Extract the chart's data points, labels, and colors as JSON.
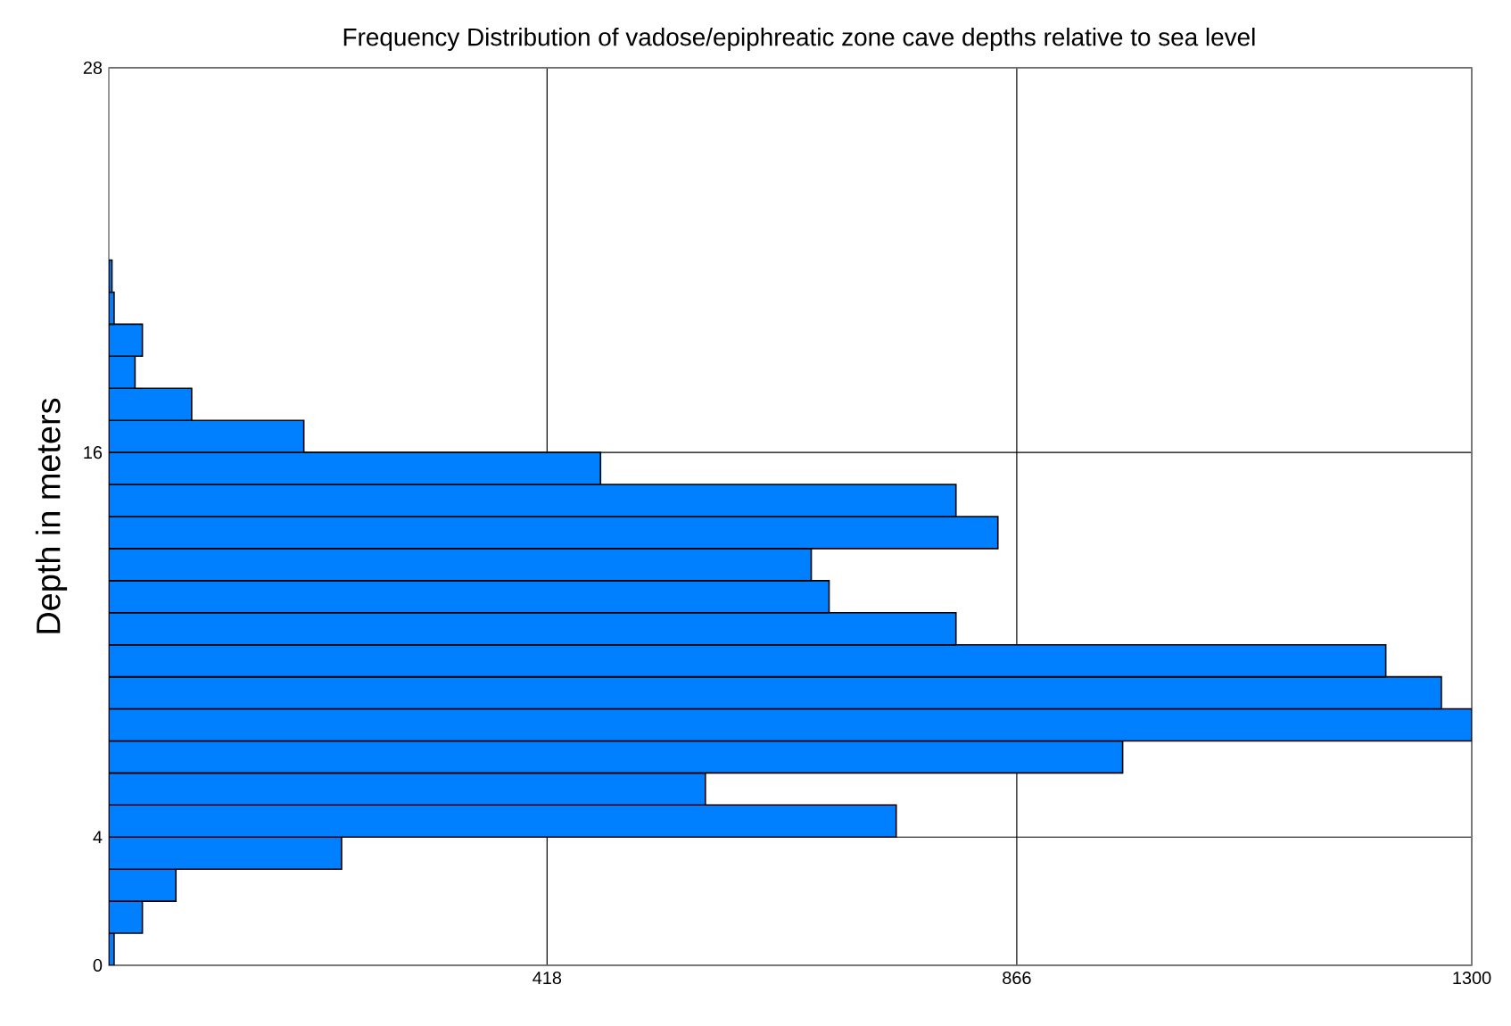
{
  "chart_data": {
    "type": "histogram",
    "orientation": "horizontal",
    "title": "Frequency Distribution of vadose/epiphreatic zone cave depths relative to sea level",
    "ylabel": "Depth in meters",
    "bins": [
      0,
      1,
      2,
      3,
      4,
      5,
      6,
      7,
      8,
      9,
      10,
      11,
      12,
      13,
      14,
      15,
      16,
      17,
      18,
      19,
      20,
      21,
      22
    ],
    "values": [
      5,
      32,
      64,
      222,
      751,
      569,
      967,
      1300,
      1271,
      1218,
      808,
      687,
      670,
      848,
      808,
      469,
      186,
      79,
      25,
      32,
      5,
      3
    ],
    "color": "#007fff",
    "xlim": [
      0,
      1300
    ],
    "xticks": [
      418,
      866,
      1300
    ],
    "ylim": [
      0,
      28
    ],
    "yticks": [
      0,
      4,
      16,
      28
    ],
    "grid": true
  }
}
